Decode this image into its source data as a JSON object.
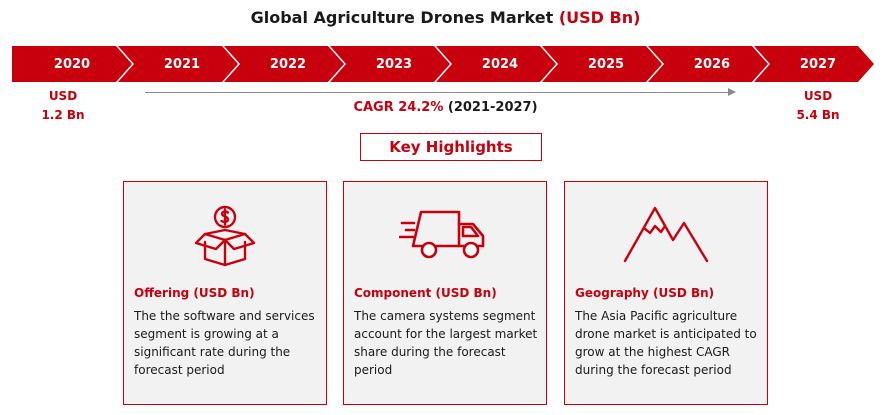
{
  "title": {
    "main": "Global Agriculture Drones Market",
    "unit": "(USD Bn)"
  },
  "timeline": {
    "years": [
      "2020",
      "2021",
      "2022",
      "2023",
      "2024",
      "2025",
      "2026",
      "2027"
    ]
  },
  "start_value": {
    "label": "USD",
    "value": "1.2 Bn"
  },
  "end_value": {
    "label": "USD",
    "value": "5.4 Bn"
  },
  "cagr": {
    "label": "CAGR 24.2%",
    "period": "(2021-2027)"
  },
  "key_highlights": {
    "label": "Key Highlights"
  },
  "cards": [
    {
      "icon": "money-box-icon",
      "title": "Offering (USD Bn)",
      "text": "The the software and services segment is growing at a significant rate during the forecast period"
    },
    {
      "icon": "delivery-truck-icon",
      "title": "Component (USD Bn)",
      "text": "The camera systems segment account for the largest market share during the forecast period"
    },
    {
      "icon": "mountain-icon",
      "title": "Geography (USD Bn)",
      "text": "The Asia Pacific agriculture drone market is anticipated to grow at the highest CAGR during the forecast period"
    }
  ],
  "colors": {
    "accent": "#c8000e",
    "card_bg": "#f2f2f2",
    "arrow": "#8a8a8a"
  }
}
